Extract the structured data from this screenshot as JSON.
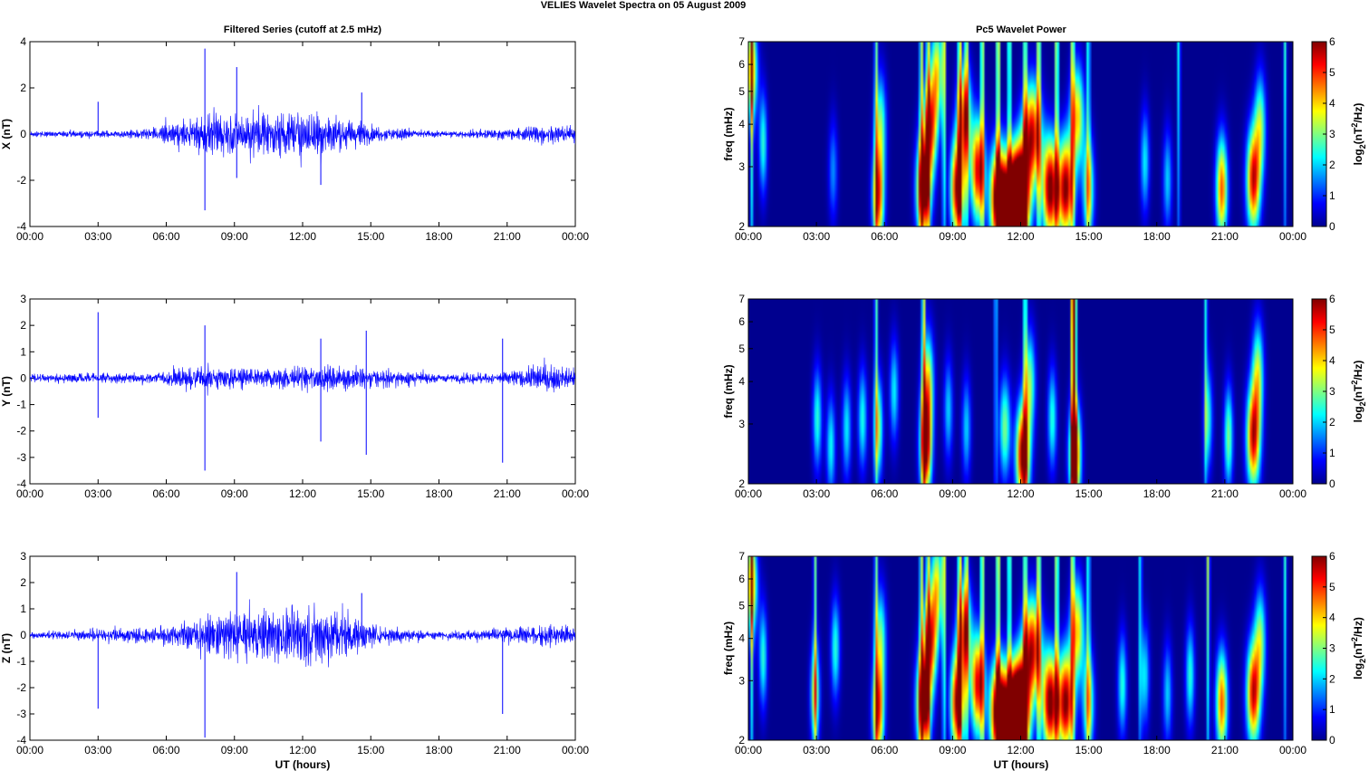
{
  "figure_title": "VELIES Wavelet Spectra on 05 August    2009",
  "left_title": "Filtered Series (cutoff at 2.5 mHz)",
  "right_title": "Pc5 Wavelet Power",
  "bottom_xlabel": "UT (hours)",
  "x_tick_labels": [
    "00:00",
    "03:00",
    "06:00",
    "09:00",
    "12:00",
    "15:00",
    "18:00",
    "21:00",
    "00:00"
  ],
  "freq_ylabel": "freq (mHz)",
  "freq_ticks": [
    2,
    3,
    4,
    5,
    6,
    7
  ],
  "colorbar": {
    "label_base": "log",
    "label_sub": "2",
    "label_open": "(nT",
    "label_sup": "2",
    "label_close": "/Hz)",
    "ticks": [
      0,
      1,
      2,
      3,
      4,
      5,
      6
    ],
    "colormap": "jet"
  },
  "colors": {
    "series_line": "#0000ff",
    "background_low_power": "#00008f"
  },
  "chart_data": [
    {
      "type": "line",
      "component": "X",
      "ylabel": "X (nT)",
      "xlim_hours": [
        0,
        24
      ],
      "ylim": [
        -4,
        4
      ],
      "y_ticks": [
        -4,
        -2,
        0,
        2,
        4
      ],
      "baseline_amplitude": 0.1,
      "activity_envelope": [
        [
          0,
          0.1
        ],
        [
          4.5,
          0.15
        ],
        [
          5.5,
          0.3
        ],
        [
          7.5,
          0.7
        ],
        [
          9,
          0.8
        ],
        [
          11,
          0.9
        ],
        [
          12.5,
          1.0
        ],
        [
          14,
          0.6
        ],
        [
          15,
          0.3
        ],
        [
          18,
          0.12
        ],
        [
          21,
          0.2
        ],
        [
          22.5,
          0.35
        ],
        [
          24,
          0.3
        ]
      ],
      "spikes": [
        [
          3.0,
          1.4
        ],
        [
          7.7,
          3.7
        ],
        [
          7.7,
          -3.3
        ],
        [
          9.1,
          2.9
        ],
        [
          9.1,
          -1.9
        ],
        [
          12.8,
          -2.2
        ],
        [
          14.6,
          1.8
        ]
      ]
    },
    {
      "type": "line",
      "component": "Y",
      "ylabel": "Y (nT)",
      "xlim_hours": [
        0,
        24
      ],
      "ylim": [
        -4,
        3
      ],
      "y_ticks": [
        -4,
        -3,
        -2,
        -1,
        0,
        1,
        2,
        3
      ],
      "baseline_amplitude": 0.12,
      "activity_envelope": [
        [
          0,
          0.12
        ],
        [
          5.5,
          0.2
        ],
        [
          7.8,
          0.5
        ],
        [
          9,
          0.3
        ],
        [
          12.5,
          0.4
        ],
        [
          15,
          0.35
        ],
        [
          18,
          0.15
        ],
        [
          21,
          0.2
        ],
        [
          22.8,
          0.5
        ],
        [
          24,
          0.3
        ]
      ],
      "spikes": [
        [
          3.0,
          2.5
        ],
        [
          3.0,
          -1.5
        ],
        [
          7.7,
          2.0
        ],
        [
          7.7,
          -3.5
        ],
        [
          12.8,
          1.5
        ],
        [
          12.8,
          -2.4
        ],
        [
          14.8,
          1.8
        ],
        [
          14.8,
          -2.9
        ],
        [
          20.8,
          1.5
        ],
        [
          20.8,
          -3.2
        ]
      ]
    },
    {
      "type": "line",
      "component": "Z",
      "ylabel": "Z (nT)",
      "xlim_hours": [
        0,
        24
      ],
      "ylim": [
        -4,
        3
      ],
      "y_ticks": [
        -4,
        -3,
        -2,
        -1,
        0,
        1,
        2,
        3
      ],
      "baseline_amplitude": 0.1,
      "activity_envelope": [
        [
          0,
          0.1
        ],
        [
          5.5,
          0.3
        ],
        [
          7.8,
          0.7
        ],
        [
          9,
          0.8
        ],
        [
          11,
          0.9
        ],
        [
          12.5,
          1.1
        ],
        [
          14,
          0.8
        ],
        [
          15,
          0.35
        ],
        [
          18,
          0.12
        ],
        [
          21,
          0.25
        ],
        [
          22.8,
          0.4
        ],
        [
          24,
          0.3
        ]
      ],
      "spikes": [
        [
          3.0,
          -2.8
        ],
        [
          7.7,
          -3.9
        ],
        [
          9.1,
          2.4
        ],
        [
          14.6,
          1.6
        ],
        [
          20.8,
          -3.0
        ]
      ]
    },
    {
      "type": "heatmap",
      "component": "X",
      "title": "Pc5 Wavelet Power",
      "ylabel": "freq (mHz)",
      "yscale": "log",
      "ylim": [
        2,
        7
      ],
      "xlim_hours": [
        0,
        24
      ],
      "zlim": [
        0,
        6
      ],
      "blobs": [
        [
          0.1,
          0.85,
          0.25,
          4.0
        ],
        [
          0.6,
          0.45,
          0.18,
          2.5
        ],
        [
          3.7,
          0.3,
          0.2,
          1.6
        ],
        [
          5.7,
          0.15,
          0.25,
          5.0
        ],
        [
          5.8,
          0.55,
          0.25,
          2.8
        ],
        [
          7.7,
          0.2,
          0.3,
          6.5
        ],
        [
          8.0,
          0.55,
          0.3,
          5.0
        ],
        [
          8.3,
          0.85,
          0.25,
          3.5
        ],
        [
          9.2,
          0.2,
          0.3,
          6.0
        ],
        [
          9.5,
          0.6,
          0.3,
          4.5
        ],
        [
          10.1,
          0.3,
          0.3,
          5.5
        ],
        [
          11.0,
          0.15,
          0.35,
          6.8
        ],
        [
          11.6,
          0.1,
          0.45,
          7.2
        ],
        [
          12.0,
          0.15,
          0.4,
          7.3
        ],
        [
          12.5,
          0.5,
          0.4,
          5.5
        ],
        [
          13.3,
          0.2,
          0.35,
          6.2
        ],
        [
          14.0,
          0.2,
          0.35,
          6.0
        ],
        [
          14.5,
          0.6,
          0.3,
          4.0
        ],
        [
          15.0,
          0.2,
          0.25,
          3.5
        ],
        [
          17.5,
          0.35,
          0.2,
          2.2
        ],
        [
          18.5,
          0.25,
          0.2,
          2.0
        ],
        [
          20.9,
          0.2,
          0.25,
          4.8
        ],
        [
          22.3,
          0.25,
          0.3,
          5.5
        ],
        [
          22.6,
          0.55,
          0.25,
          3.0
        ]
      ],
      "streaks": [
        [
          0.1,
          3.5
        ],
        [
          5.6,
          3.0
        ],
        [
          7.6,
          4.0
        ],
        [
          7.9,
          3.5
        ],
        [
          8.6,
          4.0
        ],
        [
          9.3,
          4.2
        ],
        [
          9.6,
          3.5
        ],
        [
          10.3,
          4.5
        ],
        [
          11.0,
          5.0
        ],
        [
          11.5,
          4.0
        ],
        [
          12.2,
          4.0
        ],
        [
          12.8,
          4.5
        ],
        [
          13.6,
          4.5
        ],
        [
          14.3,
          4.0
        ],
        [
          15.0,
          3.0
        ],
        [
          19.0,
          2.5
        ],
        [
          23.7,
          2.5
        ]
      ]
    },
    {
      "type": "heatmap",
      "component": "Y",
      "title": "",
      "ylabel": "freq (mHz)",
      "yscale": "log",
      "ylim": [
        2,
        7
      ],
      "xlim_hours": [
        0,
        24
      ],
      "zlim": [
        0,
        6
      ],
      "blobs": [
        [
          3.0,
          0.35,
          0.2,
          2.5
        ],
        [
          3.6,
          0.2,
          0.2,
          2.3
        ],
        [
          4.3,
          0.3,
          0.2,
          2.2
        ],
        [
          5.0,
          0.35,
          0.2,
          2.4
        ],
        [
          5.7,
          0.3,
          0.2,
          3.2
        ],
        [
          6.4,
          0.5,
          0.2,
          2.2
        ],
        [
          7.8,
          0.2,
          0.25,
          6.2
        ],
        [
          7.9,
          0.55,
          0.25,
          3.5
        ],
        [
          8.8,
          0.4,
          0.2,
          2.0
        ],
        [
          9.6,
          0.3,
          0.2,
          2.0
        ],
        [
          11.3,
          0.3,
          0.25,
          3.0
        ],
        [
          12.1,
          0.15,
          0.3,
          6.3
        ],
        [
          12.4,
          0.55,
          0.25,
          3.0
        ],
        [
          13.4,
          0.35,
          0.2,
          2.5
        ],
        [
          14.4,
          0.15,
          0.25,
          6.0
        ],
        [
          20.3,
          0.35,
          0.2,
          2.3
        ],
        [
          21.2,
          0.25,
          0.2,
          3.0
        ],
        [
          22.3,
          0.25,
          0.3,
          5.5
        ],
        [
          22.5,
          0.6,
          0.25,
          3.2
        ]
      ],
      "streaks": [
        [
          5.6,
          3.0
        ],
        [
          7.7,
          4.0
        ],
        [
          10.9,
          2.5
        ],
        [
          12.2,
          3.5
        ],
        [
          14.3,
          5.5
        ],
        [
          14.4,
          5.5
        ],
        [
          20.2,
          2.5
        ]
      ]
    },
    {
      "type": "heatmap",
      "component": "Z",
      "title": "",
      "ylabel": "freq (mHz)",
      "yscale": "log",
      "ylim": [
        2,
        7
      ],
      "xlim_hours": [
        0,
        24
      ],
      "zlim": [
        0,
        6
      ],
      "blobs": [
        [
          0.1,
          0.85,
          0.25,
          4.0
        ],
        [
          0.6,
          0.45,
          0.18,
          2.5
        ],
        [
          2.9,
          0.25,
          0.2,
          3.5
        ],
        [
          3.8,
          0.5,
          0.2,
          2.5
        ],
        [
          5.7,
          0.15,
          0.25,
          5.0
        ],
        [
          5.8,
          0.55,
          0.25,
          2.8
        ],
        [
          7.7,
          0.2,
          0.3,
          6.5
        ],
        [
          8.0,
          0.55,
          0.3,
          5.0
        ],
        [
          8.3,
          0.85,
          0.25,
          3.5
        ],
        [
          9.2,
          0.2,
          0.3,
          6.0
        ],
        [
          9.5,
          0.6,
          0.3,
          4.5
        ],
        [
          10.1,
          0.3,
          0.3,
          5.5
        ],
        [
          11.0,
          0.15,
          0.35,
          6.8
        ],
        [
          11.6,
          0.1,
          0.45,
          7.2
        ],
        [
          12.0,
          0.15,
          0.4,
          7.3
        ],
        [
          12.5,
          0.5,
          0.4,
          5.5
        ],
        [
          13.3,
          0.2,
          0.35,
          6.2
        ],
        [
          14.0,
          0.2,
          0.35,
          6.0
        ],
        [
          14.5,
          0.6,
          0.3,
          4.0
        ],
        [
          15.0,
          0.2,
          0.25,
          3.5
        ],
        [
          16.5,
          0.3,
          0.2,
          2.5
        ],
        [
          17.5,
          0.35,
          0.2,
          2.2
        ],
        [
          18.5,
          0.25,
          0.2,
          2.0
        ],
        [
          19.5,
          0.35,
          0.2,
          2.5
        ],
        [
          20.9,
          0.2,
          0.25,
          4.8
        ],
        [
          22.3,
          0.25,
          0.3,
          5.5
        ],
        [
          22.6,
          0.55,
          0.25,
          3.0
        ]
      ],
      "streaks": [
        [
          0.1,
          3.5
        ],
        [
          2.9,
          3.0
        ],
        [
          5.6,
          3.0
        ],
        [
          7.6,
          4.0
        ],
        [
          7.9,
          3.5
        ],
        [
          8.6,
          4.0
        ],
        [
          9.3,
          4.2
        ],
        [
          9.6,
          3.5
        ],
        [
          10.3,
          4.5
        ],
        [
          11.0,
          5.0
        ],
        [
          11.5,
          4.0
        ],
        [
          12.2,
          4.0
        ],
        [
          12.8,
          4.5
        ],
        [
          13.6,
          4.5
        ],
        [
          14.3,
          4.0
        ],
        [
          15.0,
          3.0
        ],
        [
          17.3,
          2.5
        ],
        [
          20.3,
          3.5
        ],
        [
          23.7,
          2.5
        ]
      ]
    }
  ]
}
